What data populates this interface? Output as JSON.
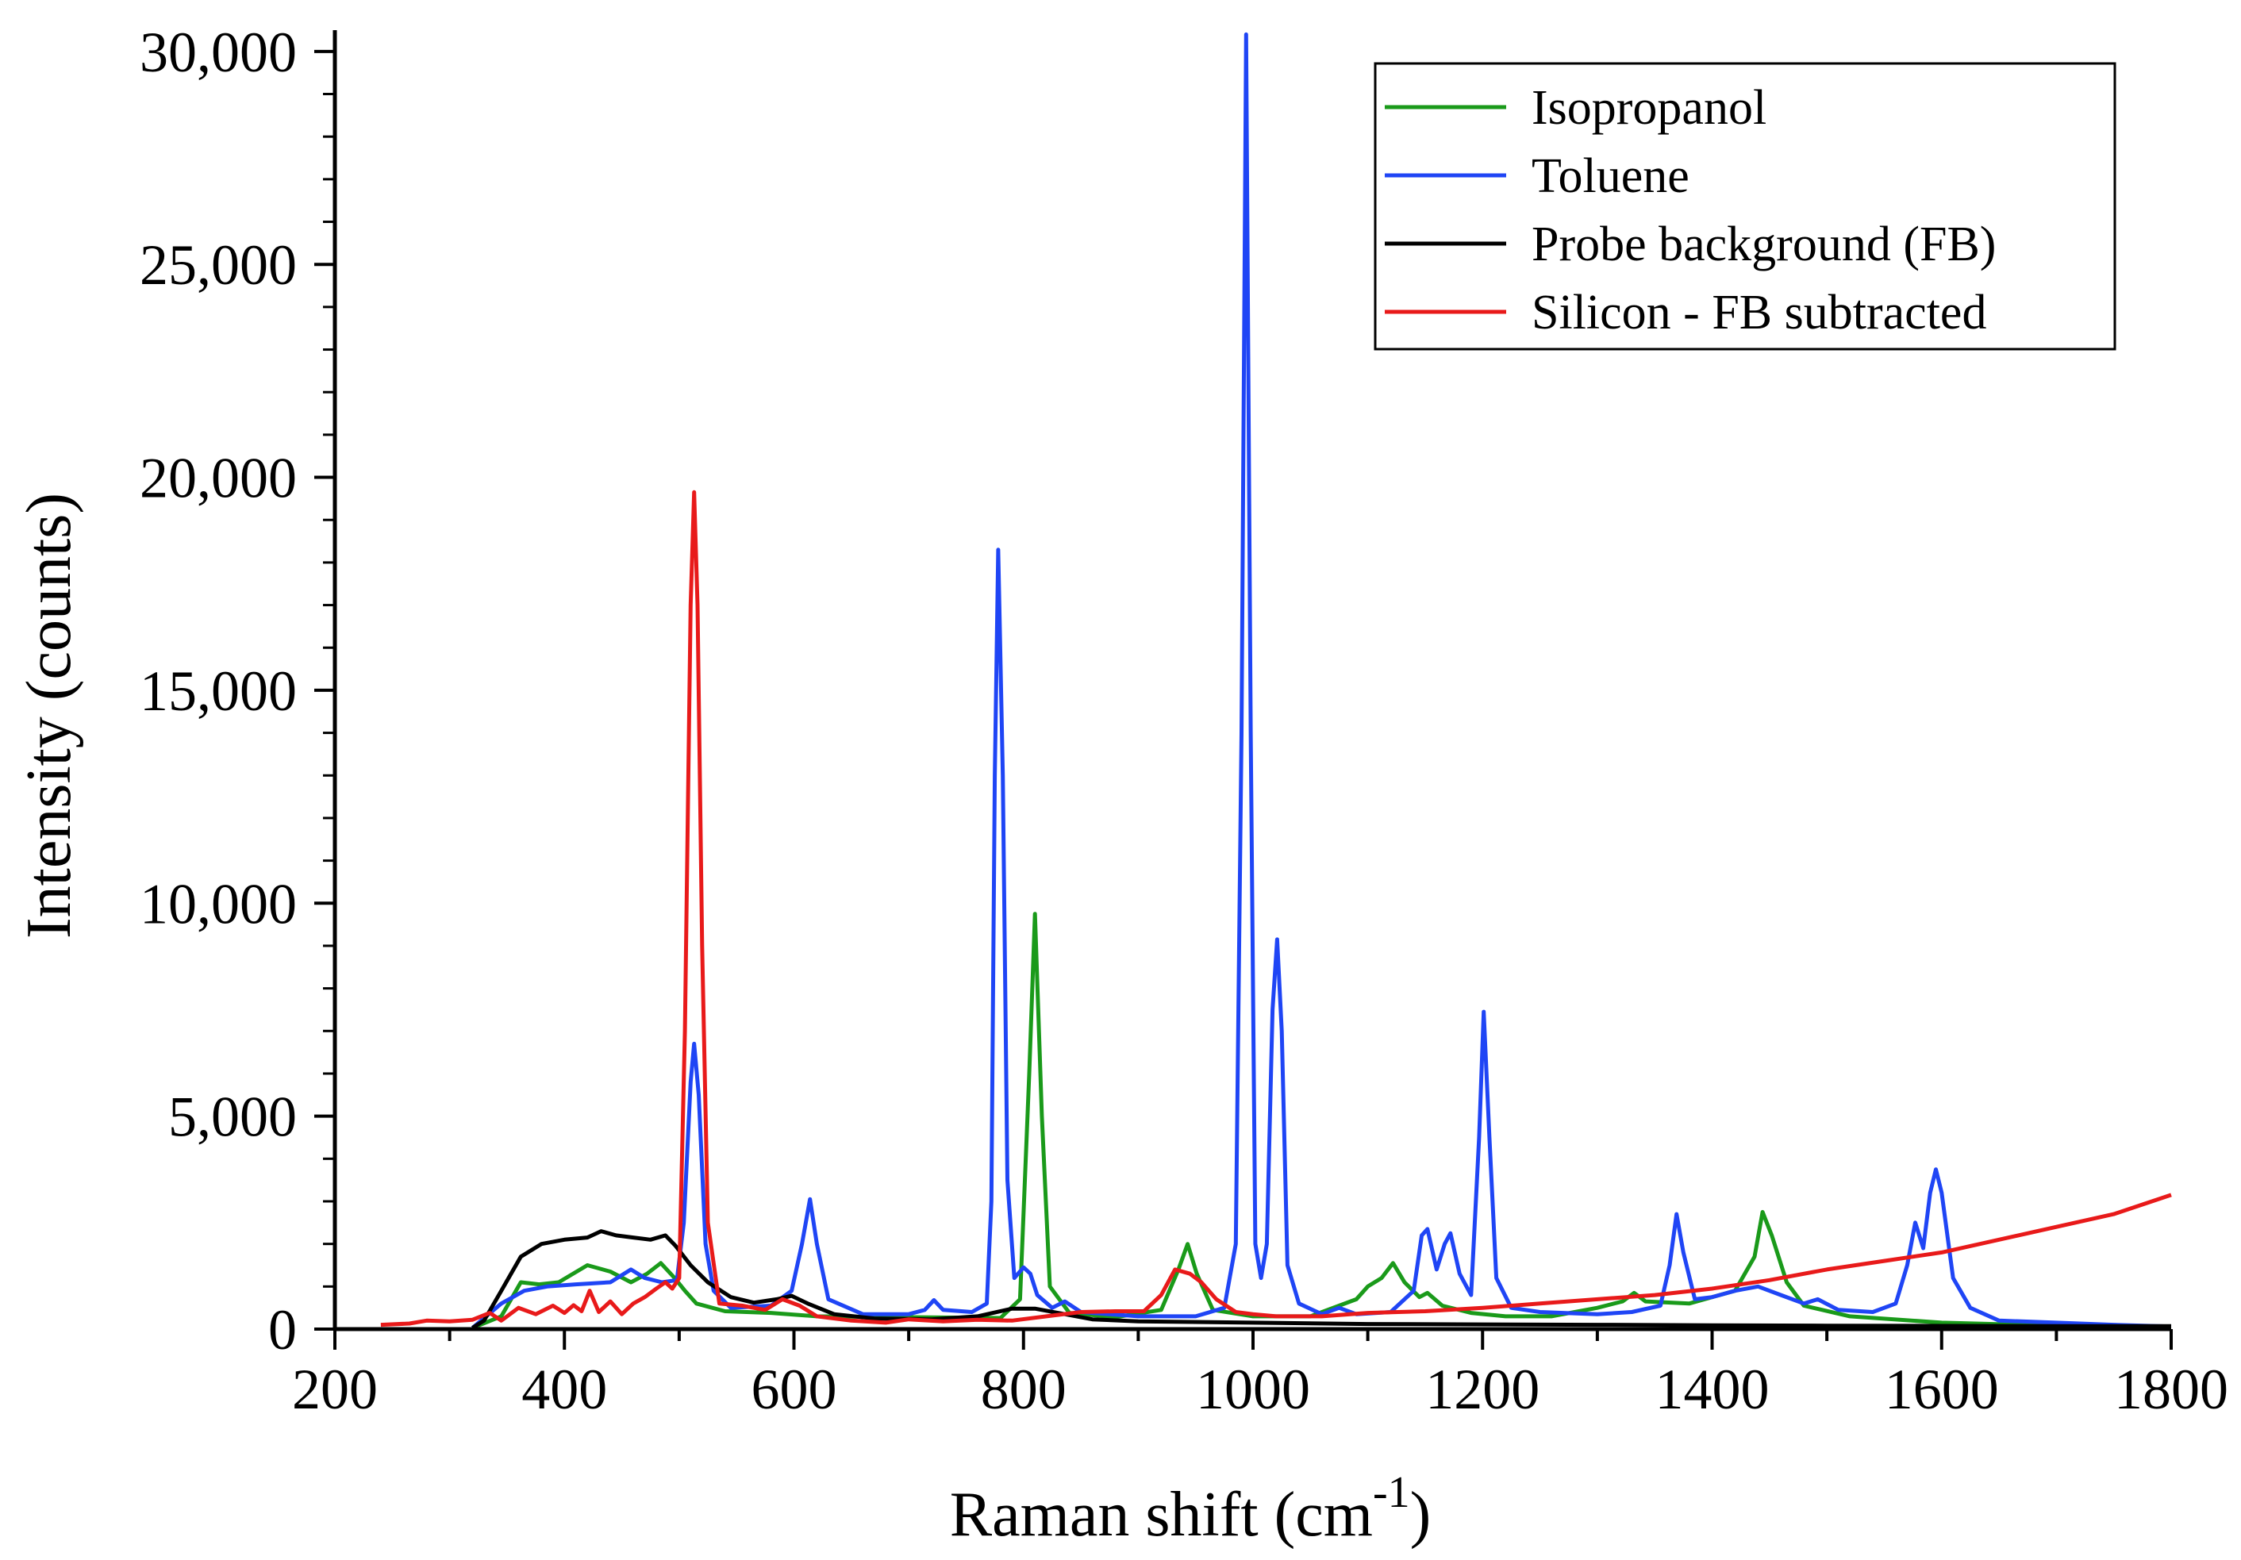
{
  "chart_data": {
    "type": "line",
    "title": "",
    "xlabel": "Raman shift (cm",
    "xlabel_sup": "-1",
    "xlabel_close": ")",
    "ylabel": "Intensity (counts)",
    "xlim": [
      200,
      1800
    ],
    "ylim": [
      0,
      30500
    ],
    "x_ticks": [
      200,
      400,
      600,
      800,
      1000,
      1200,
      1400,
      1600,
      1800
    ],
    "x_tick_labels": [
      "200",
      "400",
      "600",
      "800",
      "1000",
      "1200",
      "1400",
      "1600",
      "1800"
    ],
    "y_ticks": [
      0,
      5000,
      10000,
      15000,
      20000,
      25000,
      30000
    ],
    "y_tick_labels": [
      "0",
      "5,000",
      "10,000",
      "15,000",
      "20,000",
      "25,000",
      "30,000"
    ],
    "grid": false,
    "legend_position": "top-right",
    "series": [
      {
        "name": "Isopropanol",
        "color": "#1a9a1a",
        "points": [
          [
            320,
            30
          ],
          [
            345,
            300
          ],
          [
            362,
            1100
          ],
          [
            378,
            1050
          ],
          [
            395,
            1100
          ],
          [
            420,
            1500
          ],
          [
            440,
            1350
          ],
          [
            458,
            1100
          ],
          [
            472,
            1300
          ],
          [
            484,
            1550
          ],
          [
            496,
            1200
          ],
          [
            505,
            900
          ],
          [
            515,
            600
          ],
          [
            540,
            420
          ],
          [
            580,
            380
          ],
          [
            620,
            300
          ],
          [
            700,
            280
          ],
          [
            780,
            260
          ],
          [
            797,
            700
          ],
          [
            805,
            6000
          ],
          [
            810,
            9750
          ],
          [
            816,
            5000
          ],
          [
            823,
            1000
          ],
          [
            840,
            380
          ],
          [
            880,
            280
          ],
          [
            920,
            450
          ],
          [
            935,
            1400
          ],
          [
            943,
            2000
          ],
          [
            951,
            1300
          ],
          [
            965,
            450
          ],
          [
            1000,
            300
          ],
          [
            1050,
            300
          ],
          [
            1090,
            700
          ],
          [
            1100,
            1000
          ],
          [
            1112,
            1200
          ],
          [
            1122,
            1550
          ],
          [
            1132,
            1100
          ],
          [
            1145,
            750
          ],
          [
            1152,
            850
          ],
          [
            1165,
            550
          ],
          [
            1190,
            380
          ],
          [
            1220,
            300
          ],
          [
            1260,
            300
          ],
          [
            1300,
            500
          ],
          [
            1322,
            650
          ],
          [
            1332,
            850
          ],
          [
            1342,
            650
          ],
          [
            1380,
            600
          ],
          [
            1420,
            900
          ],
          [
            1437,
            1700
          ],
          [
            1444,
            2750
          ],
          [
            1452,
            2200
          ],
          [
            1465,
            1100
          ],
          [
            1480,
            550
          ],
          [
            1520,
            300
          ],
          [
            1600,
            150
          ],
          [
            1700,
            80
          ],
          [
            1800,
            60
          ]
        ]
      },
      {
        "name": "Toluene",
        "color": "#1f45f5",
        "points": [
          [
            320,
            30
          ],
          [
            345,
            600
          ],
          [
            365,
            900
          ],
          [
            385,
            1000
          ],
          [
            410,
            1050
          ],
          [
            440,
            1100
          ],
          [
            458,
            1400
          ],
          [
            470,
            1200
          ],
          [
            485,
            1100
          ],
          [
            498,
            1150
          ],
          [
            504,
            2500
          ],
          [
            510,
            5800
          ],
          [
            513,
            6700
          ],
          [
            517,
            5500
          ],
          [
            523,
            2000
          ],
          [
            530,
            900
          ],
          [
            545,
            500
          ],
          [
            580,
            550
          ],
          [
            598,
            900
          ],
          [
            607,
            2000
          ],
          [
            614,
            3050
          ],
          [
            620,
            2000
          ],
          [
            630,
            700
          ],
          [
            660,
            350
          ],
          [
            700,
            350
          ],
          [
            714,
            450
          ],
          [
            722,
            680
          ],
          [
            730,
            450
          ],
          [
            755,
            400
          ],
          [
            768,
            600
          ],
          [
            772,
            3000
          ],
          [
            775,
            13000
          ],
          [
            778,
            18300
          ],
          [
            782,
            13000
          ],
          [
            786,
            3500
          ],
          [
            792,
            1200
          ],
          [
            800,
            1450
          ],
          [
            806,
            1300
          ],
          [
            812,
            800
          ],
          [
            825,
            500
          ],
          [
            836,
            650
          ],
          [
            850,
            400
          ],
          [
            900,
            300
          ],
          [
            950,
            300
          ],
          [
            975,
            500
          ],
          [
            985,
            2000
          ],
          [
            990,
            14000
          ],
          [
            994,
            30400
          ],
          [
            998,
            14000
          ],
          [
            1002,
            2000
          ],
          [
            1007,
            1200
          ],
          [
            1012,
            2000
          ],
          [
            1017,
            7500
          ],
          [
            1021,
            9150
          ],
          [
            1025,
            7000
          ],
          [
            1030,
            1500
          ],
          [
            1040,
            600
          ],
          [
            1060,
            350
          ],
          [
            1075,
            500
          ],
          [
            1090,
            350
          ],
          [
            1120,
            400
          ],
          [
            1140,
            900
          ],
          [
            1147,
            2200
          ],
          [
            1152,
            2350
          ],
          [
            1160,
            1400
          ],
          [
            1167,
            2000
          ],
          [
            1172,
            2250
          ],
          [
            1180,
            1300
          ],
          [
            1190,
            800
          ],
          [
            1197,
            4500
          ],
          [
            1201,
            7450
          ],
          [
            1206,
            4500
          ],
          [
            1212,
            1200
          ],
          [
            1225,
            500
          ],
          [
            1250,
            400
          ],
          [
            1300,
            350
          ],
          [
            1330,
            400
          ],
          [
            1355,
            550
          ],
          [
            1363,
            1500
          ],
          [
            1369,
            2700
          ],
          [
            1375,
            1800
          ],
          [
            1385,
            700
          ],
          [
            1400,
            750
          ],
          [
            1420,
            900
          ],
          [
            1440,
            1000
          ],
          [
            1460,
            800
          ],
          [
            1480,
            600
          ],
          [
            1492,
            700
          ],
          [
            1510,
            450
          ],
          [
            1540,
            400
          ],
          [
            1560,
            600
          ],
          [
            1570,
            1500
          ],
          [
            1577,
            2500
          ],
          [
            1584,
            1900
          ],
          [
            1590,
            3200
          ],
          [
            1595,
            3750
          ],
          [
            1600,
            3200
          ],
          [
            1610,
            1200
          ],
          [
            1625,
            500
          ],
          [
            1650,
            200
          ],
          [
            1700,
            150
          ],
          [
            1750,
            100
          ],
          [
            1800,
            60
          ]
        ]
      },
      {
        "name": "Probe background (FB)",
        "color": "#000000",
        "points": [
          [
            320,
            30
          ],
          [
            330,
            200
          ],
          [
            345,
            900
          ],
          [
            362,
            1700
          ],
          [
            380,
            2000
          ],
          [
            400,
            2100
          ],
          [
            420,
            2150
          ],
          [
            432,
            2300
          ],
          [
            445,
            2200
          ],
          [
            460,
            2150
          ],
          [
            475,
            2100
          ],
          [
            488,
            2200
          ],
          [
            497,
            1950
          ],
          [
            510,
            1500
          ],
          [
            525,
            1100
          ],
          [
            545,
            750
          ],
          [
            565,
            620
          ],
          [
            585,
            700
          ],
          [
            598,
            780
          ],
          [
            612,
            600
          ],
          [
            635,
            350
          ],
          [
            670,
            250
          ],
          [
            720,
            230
          ],
          [
            760,
            300
          ],
          [
            790,
            480
          ],
          [
            810,
            480
          ],
          [
            830,
            380
          ],
          [
            860,
            230
          ],
          [
            900,
            180
          ],
          [
            1000,
            150
          ],
          [
            1100,
            120
          ],
          [
            1200,
            110
          ],
          [
            1300,
            100
          ],
          [
            1400,
            90
          ],
          [
            1500,
            80
          ],
          [
            1600,
            75
          ],
          [
            1700,
            70
          ],
          [
            1800,
            70
          ]
        ]
      },
      {
        "name": "Silicon - FB subtracted",
        "color": "#e81a1a",
        "points": [
          [
            240,
            100
          ],
          [
            265,
            130
          ],
          [
            280,
            200
          ],
          [
            300,
            180
          ],
          [
            320,
            220
          ],
          [
            335,
            380
          ],
          [
            345,
            200
          ],
          [
            360,
            500
          ],
          [
            375,
            350
          ],
          [
            390,
            550
          ],
          [
            400,
            380
          ],
          [
            408,
            560
          ],
          [
            415,
            420
          ],
          [
            422,
            900
          ],
          [
            430,
            400
          ],
          [
            440,
            650
          ],
          [
            450,
            350
          ],
          [
            460,
            600
          ],
          [
            470,
            750
          ],
          [
            480,
            950
          ],
          [
            488,
            1100
          ],
          [
            494,
            950
          ],
          [
            500,
            1200
          ],
          [
            505,
            7000
          ],
          [
            510,
            17000
          ],
          [
            513,
            19650
          ],
          [
            516,
            17000
          ],
          [
            520,
            9000
          ],
          [
            525,
            2500
          ],
          [
            535,
            600
          ],
          [
            555,
            550
          ],
          [
            575,
            450
          ],
          [
            590,
            700
          ],
          [
            605,
            550
          ],
          [
            620,
            300
          ],
          [
            650,
            200
          ],
          [
            680,
            150
          ],
          [
            700,
            230
          ],
          [
            730,
            180
          ],
          [
            760,
            220
          ],
          [
            790,
            200
          ],
          [
            820,
            300
          ],
          [
            850,
            400
          ],
          [
            880,
            420
          ],
          [
            905,
            420
          ],
          [
            920,
            800
          ],
          [
            932,
            1400
          ],
          [
            945,
            1300
          ],
          [
            955,
            1100
          ],
          [
            968,
            700
          ],
          [
            985,
            400
          ],
          [
            1000,
            350
          ],
          [
            1020,
            300
          ],
          [
            1060,
            300
          ],
          [
            1100,
            380
          ],
          [
            1150,
            420
          ],
          [
            1200,
            500
          ],
          [
            1250,
            600
          ],
          [
            1300,
            700
          ],
          [
            1350,
            800
          ],
          [
            1400,
            950
          ],
          [
            1450,
            1150
          ],
          [
            1500,
            1400
          ],
          [
            1550,
            1600
          ],
          [
            1600,
            1800
          ],
          [
            1650,
            2100
          ],
          [
            1700,
            2400
          ],
          [
            1750,
            2700
          ],
          [
            1800,
            3150
          ]
        ]
      }
    ]
  }
}
